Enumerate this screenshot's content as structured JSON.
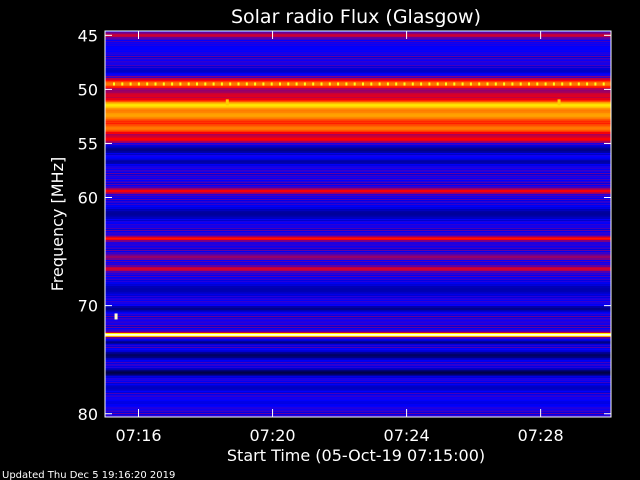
{
  "chart_data": {
    "type": "heatmap",
    "title": "Solar radio Flux (Glasgow)",
    "xlabel": "Start Time (05-Oct-19 07:15:00)",
    "ylabel": "Frequency [MHz]",
    "footer": "Updated Thu Dec  5 19:16:20 2019",
    "x_ticks": [
      "07:16",
      "07:20",
      "07:24",
      "07:28"
    ],
    "x_tick_minutes": [
      16,
      20,
      24,
      28
    ],
    "xlim_minutes": [
      15.0,
      30.1
    ],
    "y_ticks": [
      45,
      50,
      55,
      60,
      70,
      80
    ],
    "ylim": [
      44.6,
      80.3
    ],
    "colormap": [
      "#00001a",
      "#0000ff",
      "#ff0000",
      "#ffff00",
      "#ffffff"
    ],
    "background_intensity": 0.28,
    "bands": [
      {
        "freq": 45.0,
        "width": 0.25,
        "intensity": 0.45
      },
      {
        "freq": 46.2,
        "width": 0.4,
        "intensity": 0.25
      },
      {
        "freq": 48.3,
        "width": 0.3,
        "intensity": 0.18
      },
      {
        "freq": 49.5,
        "width": 0.5,
        "intensity": 0.62
      },
      {
        "freq": 50.5,
        "width": 0.4,
        "intensity": 0.45
      },
      {
        "freq": 51.5,
        "width": 0.55,
        "intensity": 0.75
      },
      {
        "freq": 52.4,
        "width": 0.8,
        "intensity": 0.66
      },
      {
        "freq": 53.6,
        "width": 0.6,
        "intensity": 0.62
      },
      {
        "freq": 54.6,
        "width": 0.35,
        "intensity": 0.5
      },
      {
        "freq": 55.6,
        "width": 0.4,
        "intensity": 0.12
      },
      {
        "freq": 56.7,
        "width": 0.3,
        "intensity": 0.15
      },
      {
        "freq": 59.4,
        "width": 0.25,
        "intensity": 0.5
      },
      {
        "freq": 61.5,
        "width": 0.6,
        "intensity": 0.14
      },
      {
        "freq": 63.8,
        "width": 0.22,
        "intensity": 0.52
      },
      {
        "freq": 65.5,
        "width": 0.25,
        "intensity": 0.4
      },
      {
        "freq": 66.6,
        "width": 0.25,
        "intensity": 0.46
      },
      {
        "freq": 68.5,
        "width": 0.6,
        "intensity": 0.16
      },
      {
        "freq": 70.3,
        "width": 0.3,
        "intensity": 0.12
      },
      {
        "freq": 72.7,
        "width": 0.18,
        "intensity": 1.0
      },
      {
        "freq": 73.4,
        "width": 0.2,
        "intensity": 0.12
      },
      {
        "freq": 74.6,
        "width": 0.4,
        "intensity": 0.08
      },
      {
        "freq": 76.2,
        "width": 0.35,
        "intensity": 0.05
      },
      {
        "freq": 77.6,
        "width": 0.4,
        "intensity": 0.18
      },
      {
        "freq": 79.0,
        "width": 0.3,
        "intensity": 0.22
      }
    ],
    "spots": [
      {
        "minute": 15.33,
        "freq": 71.0,
        "intensity": 0.95
      },
      {
        "minute": 18.65,
        "freq": 51.2,
        "intensity": 0.7
      },
      {
        "minute": 28.55,
        "freq": 51.2,
        "intensity": 0.7
      }
    ]
  }
}
